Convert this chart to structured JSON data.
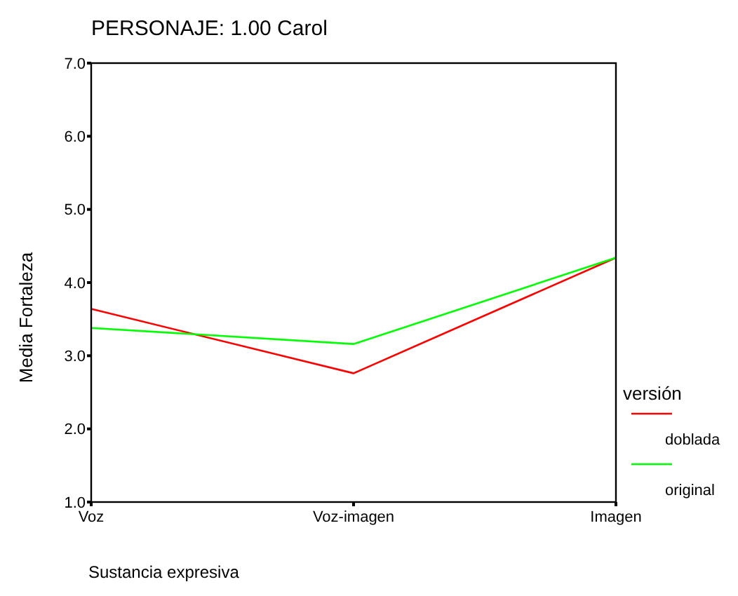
{
  "chart_data": {
    "type": "line",
    "title": "PERSONAJE:     1.00   Carol",
    "xlabel": "Sustancia expresiva",
    "ylabel": "Media Fortaleza",
    "legend_title": "versión",
    "categories": [
      "Voz",
      "Voz-imagen",
      "Imagen"
    ],
    "series": [
      {
        "name": "doblada",
        "color": "#ff0000",
        "values": [
          3.64,
          2.76,
          4.34
        ]
      },
      {
        "name": "original",
        "color": "#00ff00",
        "values": [
          3.38,
          3.16,
          4.34
        ]
      }
    ],
    "ylim": [
      1,
      7
    ],
    "yticks": [
      {
        "value": 1,
        "label": "1.0"
      },
      {
        "value": 2,
        "label": "2.0"
      },
      {
        "value": 3,
        "label": "3.0"
      },
      {
        "value": 4,
        "label": "4.0"
      },
      {
        "value": 5,
        "label": "5.0"
      },
      {
        "value": 6,
        "label": "6.0"
      },
      {
        "value": 7,
        "label": "7.0"
      }
    ],
    "legend": "right",
    "marker": "none"
  }
}
